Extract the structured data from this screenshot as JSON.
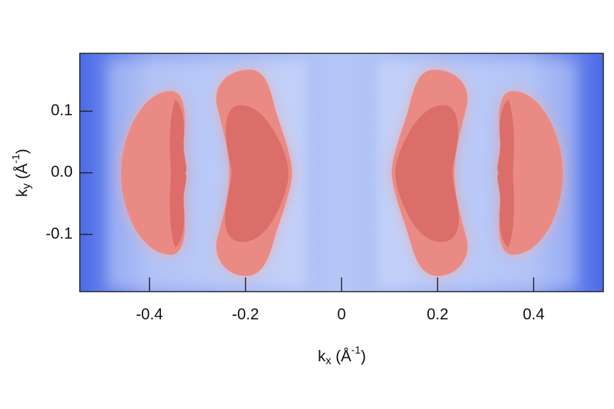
{
  "chart_data": {
    "type": "contour",
    "xlabel": {
      "base": "k",
      "sub": "x",
      "unit": "(Å",
      "sup": "-1",
      "close": ")"
    },
    "ylabel": {
      "base": "k",
      "sub": "y",
      "unit": "(Å",
      "sup": "-1",
      "close": ")"
    },
    "xlim": [
      -0.545,
      0.545
    ],
    "ylim": [
      -0.193,
      0.194
    ],
    "xticks": [
      -0.4,
      -0.2,
      0,
      0.2,
      0.4
    ],
    "yticks": [
      -0.1,
      {
        "value": 0,
        "label": "0.0"
      },
      0.1
    ]
  }
}
